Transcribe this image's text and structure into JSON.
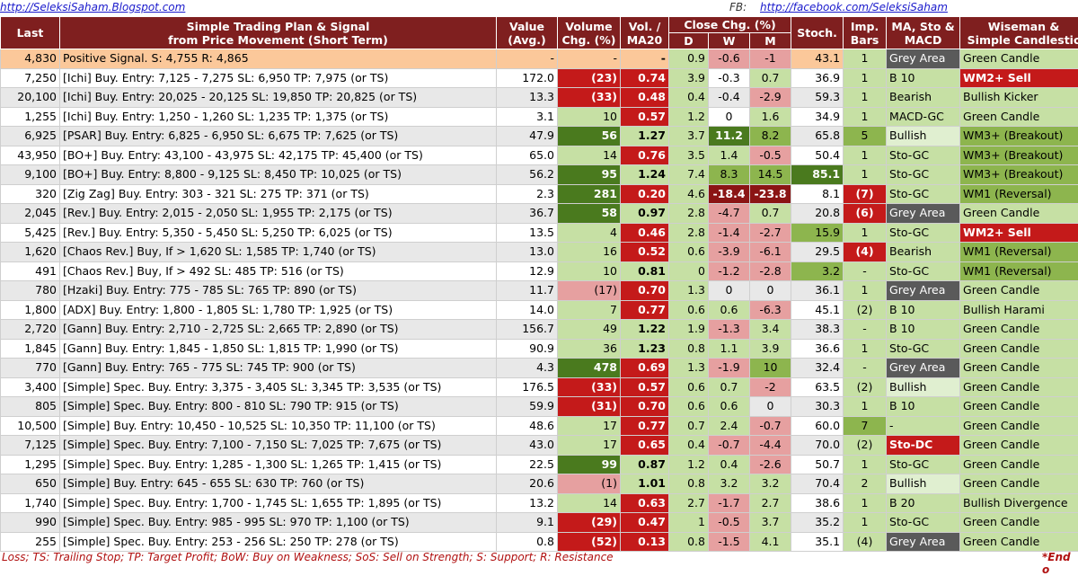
{
  "top": {
    "blog": "http://SeleksiSaham.Blogspot.com",
    "fb_label": "FB:",
    "fb": "http://facebook.com/SeleksiSaham"
  },
  "headers": {
    "last": "Last",
    "plan": "Simple Trading Plan & Signal",
    "plan2": "from Price Movement (Short Term)",
    "value": "Value",
    "value2": "(Avg.)",
    "volume": "Volume",
    "volume2": "Chg. (%)",
    "vol": "Vol. /",
    "vol2": "MA20",
    "close": "Close Chg. (%)",
    "d": "D",
    "w": "W",
    "m": "M",
    "stoch": "Stoch.",
    "imp": "Imp.",
    "imp2": "Bars",
    "ma": "MA, Sto &",
    "ma2": "MACD",
    "wise": "Wiseman &",
    "wise2": "Simple Candlestic"
  },
  "rows": [
    {
      "last": "4,830",
      "plan": "Positive Signal.  S:   4,755  R:   4,865",
      "value": "-",
      "vchg": "-",
      "vma": "-",
      "d": "0.9",
      "w": "-0.6",
      "m": "-1",
      "stoch": "43.1",
      "imp": "1",
      "ma": "Grey Area",
      "wise": "Green Candle"
    },
    {
      "last": "7,250",
      "plan": "[Ichi] Buy.  Entry:  7,125 -  7,275  SL: 6,950 TP: 7,975 (or TS)",
      "value": "172.0",
      "vchg": "(23)",
      "vma": "0.74",
      "d": "3.9",
      "w": "-0.3",
      "m": "0.7",
      "stoch": "36.9",
      "imp": "1",
      "ma": "B 10",
      "wise": "WM2+ Sell"
    },
    {
      "last": "20,100",
      "plan": "[Ichi] Buy.  Entry: 20,025 - 20,125  SL: 19,850 TP: 20,825 (or TS)",
      "value": "13.3",
      "vchg": "(33)",
      "vma": "0.48",
      "d": "0.4",
      "w": "-0.4",
      "m": "-2.9",
      "stoch": "59.3",
      "imp": "1",
      "ma": "Bearish",
      "wise": "Bullish Kicker"
    },
    {
      "last": "1,255",
      "plan": "[Ichi] Buy.  Entry:  1,250 -  1,260  SL: 1,235 TP: 1,375 (or TS)",
      "value": "3.1",
      "vchg": "10",
      "vma": "0.57",
      "d": "1.2",
      "w": "0",
      "m": "1.6",
      "stoch": "34.9",
      "imp": "1",
      "ma": "MACD-GC",
      "wise": "Green Candle"
    },
    {
      "last": "6,925",
      "plan": "[PSAR] Buy.  Entry:  6,825 -  6,950  SL: 6,675 TP: 7,625 (or TS)",
      "value": "47.9",
      "vchg": "56",
      "vma": "1.27",
      "d": "3.7",
      "w": "11.2",
      "m": "8.2",
      "stoch": "65.8",
      "imp": "5",
      "ma": "Bullish",
      "wise": "WM3+ (Breakout)"
    },
    {
      "last": "43,950",
      "plan": "[BO+] Buy.  Entry: 43,100 - 43,975  SL: 42,175 TP: 45,400 (or TS)",
      "value": "65.0",
      "vchg": "14",
      "vma": "0.76",
      "d": "3.5",
      "w": "1.4",
      "m": "-0.5",
      "stoch": "50.4",
      "imp": "1",
      "ma": "Sto-GC",
      "wise": "WM3+ (Breakout)"
    },
    {
      "last": "9,100",
      "plan": "[BO+] Buy.  Entry:  8,800 -  9,125  SL: 8,450 TP: 10,025 (or TS)",
      "value": "56.2",
      "vchg": "95",
      "vma": "1.24",
      "d": "7.4",
      "w": "8.3",
      "m": "14.5",
      "stoch": "85.1",
      "imp": "1",
      "ma": "Sto-GC",
      "wise": "WM3+ (Breakout)"
    },
    {
      "last": "320",
      "plan": "[Zig Zag] Buy.  Entry:   303 -   321  SL:   275 TP:   371 (or TS)",
      "value": "2.3",
      "vchg": "281",
      "vma": "0.20",
      "d": "4.6",
      "w": "-18.4",
      "m": "-23.8",
      "stoch": "8.1",
      "imp": "(7)",
      "ma": "Sto-GC",
      "wise": "WM1 (Reversal)"
    },
    {
      "last": "2,045",
      "plan": "[Rev.] Buy.  Entry:  2,015 -  2,050  SL: 1,955 TP: 2,175 (or TS)",
      "value": "36.7",
      "vchg": "58",
      "vma": "0.97",
      "d": "2.8",
      "w": "-4.7",
      "m": "0.7",
      "stoch": "20.8",
      "imp": "(6)",
      "ma": "Grey Area",
      "wise": "Green Candle"
    },
    {
      "last": "5,425",
      "plan": "[Rev.] Buy.  Entry:  5,350 -  5,450  SL: 5,250 TP: 6,025 (or TS)",
      "value": "13.5",
      "vchg": "4",
      "vma": "0.46",
      "d": "2.8",
      "w": "-1.4",
      "m": "-2.7",
      "stoch": "15.9",
      "imp": "1",
      "ma": "Sto-GC",
      "wise": "WM2+ Sell"
    },
    {
      "last": "1,620",
      "plan": "[Chaos Rev.] Buy, If >  1,620  SL: 1,585 TP: 1,740 (or TS)",
      "value": "13.0",
      "vchg": "16",
      "vma": "0.52",
      "d": "0.6",
      "w": "-3.9",
      "m": "-6.1",
      "stoch": "29.5",
      "imp": "(4)",
      "ma": "Bearish",
      "wise": "WM1 (Reversal)"
    },
    {
      "last": "491",
      "plan": "[Chaos Rev.] Buy, If >   492  SL:   485 TP:   516 (or TS)",
      "value": "12.9",
      "vchg": "10",
      "vma": "0.81",
      "d": "0",
      "w": "-1.2",
      "m": "-2.8",
      "stoch": "3.2",
      "imp": "-",
      "ma": "Sto-GC",
      "wise": "WM1 (Reversal)"
    },
    {
      "last": "780",
      "plan": "[Hzaki] Buy.  Entry:   775 -   785  SL:   765 TP:   890 (or TS)",
      "value": "11.7",
      "vchg": "(17)",
      "vma": "0.70",
      "d": "1.3",
      "w": "0",
      "m": "0",
      "stoch": "36.1",
      "imp": "1",
      "ma": "Grey Area",
      "wise": "Green Candle"
    },
    {
      "last": "1,800",
      "plan": "[ADX] Buy.  Entry:  1,800 -  1,805  SL: 1,780 TP: 1,925 (or TS)",
      "value": "14.0",
      "vchg": "7",
      "vma": "0.77",
      "d": "0.6",
      "w": "0.6",
      "m": "-6.3",
      "stoch": "45.1",
      "imp": "(2)",
      "ma": "B 10",
      "wise": "Bullish Harami"
    },
    {
      "last": "2,720",
      "plan": "[Gann] Buy.  Entry:  2,710 -  2,725  SL: 2,665 TP: 2,890 (or TS)",
      "value": "156.7",
      "vchg": "49",
      "vma": "1.22",
      "d": "1.9",
      "w": "-1.3",
      "m": "3.4",
      "stoch": "38.3",
      "imp": "-",
      "ma": "B 10",
      "wise": "Green Candle"
    },
    {
      "last": "1,845",
      "plan": "[Gann] Buy.  Entry:  1,845 -  1,850  SL: 1,815 TP: 1,990 (or TS)",
      "value": "90.9",
      "vchg": "36",
      "vma": "1.23",
      "d": "0.8",
      "w": "1.1",
      "m": "3.9",
      "stoch": "36.6",
      "imp": "1",
      "ma": "Sto-GC",
      "wise": "Green Candle"
    },
    {
      "last": "770",
      "plan": "[Gann] Buy.  Entry:   765 -   775  SL:   745 TP:   900 (or TS)",
      "value": "4.3",
      "vchg": "478",
      "vma": "0.69",
      "d": "1.3",
      "w": "-1.9",
      "m": "10",
      "stoch": "32.4",
      "imp": "-",
      "ma": "Grey Area",
      "wise": "Green Candle"
    },
    {
      "last": "3,400",
      "plan": "[Simple] Spec. Buy. Entry:  3,375 -  3,405  SL: 3,345 TP:  3,535 (or TS)",
      "value": "176.5",
      "vchg": "(33)",
      "vma": "0.57",
      "d": "0.6",
      "w": "0.7",
      "m": "-2",
      "stoch": "63.5",
      "imp": "(2)",
      "ma": "Bullish",
      "wise": "Green Candle"
    },
    {
      "last": "805",
      "plan": "[Simple] Spec. Buy. Entry:   800 -   810  SL:   790 TP:    915 (or TS)",
      "value": "59.9",
      "vchg": "(31)",
      "vma": "0.70",
      "d": "0.6",
      "w": "0.6",
      "m": "0",
      "stoch": "30.3",
      "imp": "1",
      "ma": "B 10",
      "wise": "Green Candle"
    },
    {
      "last": "10,500",
      "plan": "[Simple] Buy.  Entry: 10,450 - 10,525  SL: 10,350 TP: 11,100 (or TS)",
      "value": "48.6",
      "vchg": "17",
      "vma": "0.77",
      "d": "0.7",
      "w": "2.4",
      "m": "-0.7",
      "stoch": "60.0",
      "imp": "7",
      "ma": "-",
      "wise": "Green Candle"
    },
    {
      "last": "7,125",
      "plan": "[Simple] Spec. Buy. Entry:  7,100 -  7,150  SL: 7,025 TP:  7,675 (or TS)",
      "value": "43.0",
      "vchg": "17",
      "vma": "0.65",
      "d": "0.4",
      "w": "-0.7",
      "m": "-4.4",
      "stoch": "70.0",
      "imp": "(2)",
      "ma": "Sto-DC",
      "wise": "Green Candle"
    },
    {
      "last": "1,295",
      "plan": "[Simple] Spec. Buy. Entry:  1,285 -  1,300  SL: 1,265 TP:  1,415 (or TS)",
      "value": "22.5",
      "vchg": "99",
      "vma": "0.87",
      "d": "1.2",
      "w": "0.4",
      "m": "-2.6",
      "stoch": "50.7",
      "imp": "1",
      "ma": "Sto-GC",
      "wise": "Green Candle"
    },
    {
      "last": "650",
      "plan": "[Simple] Buy.  Entry:   645 -   655  SL:   630 TP:   760 (or TS)",
      "value": "20.6",
      "vchg": "(1)",
      "vma": "1.01",
      "d": "0.8",
      "w": "3.2",
      "m": "3.2",
      "stoch": "70.4",
      "imp": "2",
      "ma": "Bullish",
      "wise": "Green Candle"
    },
    {
      "last": "1,740",
      "plan": "[Simple] Spec. Buy. Entry:  1,700 -  1,745  SL: 1,655 TP:  1,895 (or TS)",
      "value": "13.2",
      "vchg": "14",
      "vma": "0.63",
      "d": "2.7",
      "w": "-1.7",
      "m": "2.7",
      "stoch": "38.6",
      "imp": "1",
      "ma": "B 20",
      "wise": "Bullish Divergence"
    },
    {
      "last": "990",
      "plan": "[Simple] Spec. Buy. Entry:   985 -   995  SL:   970 TP:  1,100 (or TS)",
      "value": "9.1",
      "vchg": "(29)",
      "vma": "0.47",
      "d": "1",
      "w": "-0.5",
      "m": "3.7",
      "stoch": "35.2",
      "imp": "1",
      "ma": "Sto-GC",
      "wise": "Green Candle"
    },
    {
      "last": "255",
      "plan": "[Simple] Spec. Buy. Entry:   253 -   256  SL:   250 TP:   278 (or TS)",
      "value": "0.8",
      "vchg": "(52)",
      "vma": "0.13",
      "d": "0.8",
      "w": "-1.5",
      "m": "4.1",
      "stoch": "35.1",
      "imp": "(4)",
      "ma": "Grey Area",
      "wise": "Green Candle"
    }
  ],
  "footer": {
    "legend": "Loss; TS: Trailing Stop; TP: Target Profit; BoW: Buy on Weakness; SoS: Sell on Strength; S: Support; R: Resistance",
    "end": "*End o"
  }
}
